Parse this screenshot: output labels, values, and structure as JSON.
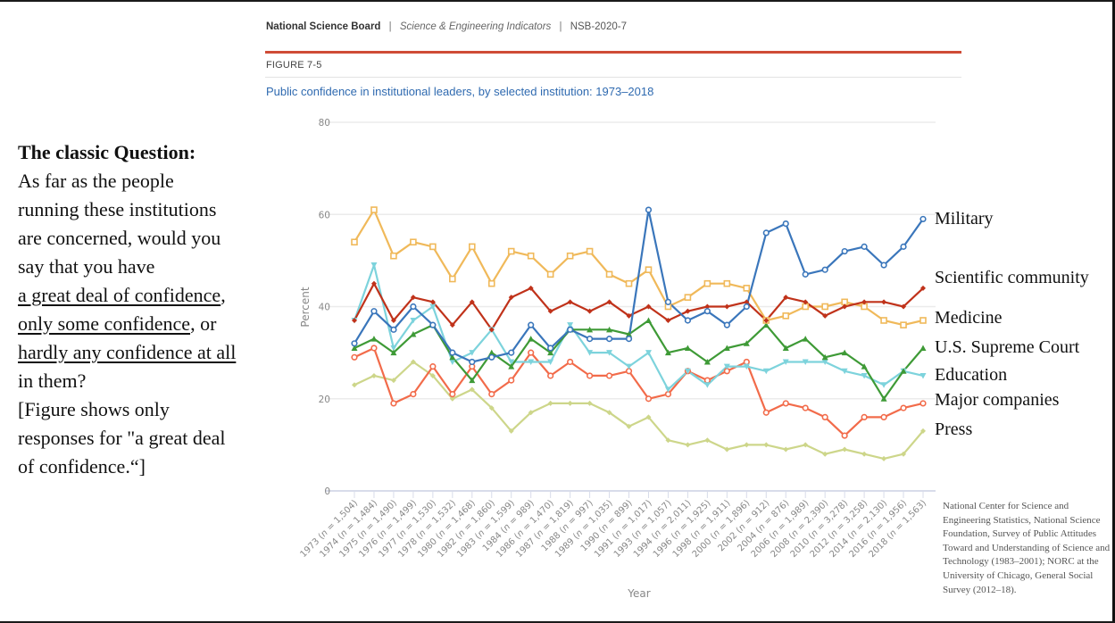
{
  "header": {
    "org": "National Science Board",
    "series": "Science & Engineering Indicators",
    "code": "NSB-2020-7",
    "separator": "|"
  },
  "figure": {
    "label": "FIGURE 7-5",
    "title": "Public confidence in institutional leaders, by selected institution: 1973–2018"
  },
  "question": {
    "title": "The classic Question:",
    "line1": "As far as the people",
    "line2": "running these institutions",
    "line3": "are concerned, would you",
    "line4": "say that you have",
    "opt1": "a great deal of confidence",
    "opt1_tail": ",",
    "opt2": "only some confidence",
    "opt2_tail": ", or",
    "opt3": "hardly any confidence at all",
    "line5": "in them?",
    "note1": "[Figure shows only",
    "note2": "responses for \"a great deal",
    "note3": "of confidence.“]"
  },
  "source": "National Center for Science and Engineering Statistics, National Science Foundation, Survey of Public Attitudes Toward and Understanding of Science and Technology (1983–2001); NORC at the University of Chicago, General Social Survey (2012–18).",
  "chart_data": {
    "type": "line",
    "title": "Public confidence in institutional leaders, by selected institution: 1973–2018",
    "xlabel": "Year",
    "ylabel": "Percent",
    "ylim": [
      0,
      80
    ],
    "yticks": [
      0,
      20,
      40,
      60,
      80
    ],
    "grid": true,
    "legend": "right-side direct labels",
    "categories": [
      "1973 (n = 1,504)",
      "1974 (n = 1,484)",
      "1975 (n = 1,490)",
      "1976 (n = 1,499)",
      "1977 (n = 1,530)",
      "1978 (n = 1,532)",
      "1980 (n = 1,468)",
      "1982 (n = 1,860)",
      "1983 (n = 1,599)",
      "1984 (n = 989)",
      "1986 (n = 1,470)",
      "1987 (n = 1,819)",
      "1988 (n = 997)",
      "1989 (n = 1,035)",
      "1990 (n = 899)",
      "1991 (n = 1,017)",
      "1993 (n = 1,057)",
      "1994 (n = 2,011)",
      "1996 (n = 1,925)",
      "1998 (n = 1,911)",
      "2000 (n = 1,896)",
      "2002 (n = 912)",
      "2004 (n = 876)",
      "2006 (n = 1,989)",
      "2008 (n = 2,390)",
      "2010 (n = 3,278)",
      "2012 (n = 3,258)",
      "2014 (n = 2,130)",
      "2016 (n = 1,956)",
      "2018 (n = 1,563)"
    ],
    "series": [
      {
        "name": "Press",
        "color": "#cdd68a",
        "marker": "diamond",
        "values": [
          23,
          25,
          24,
          28,
          25,
          20,
          22,
          18,
          13,
          17,
          19,
          19,
          19,
          17,
          14,
          16,
          11,
          10,
          11,
          9,
          10,
          10,
          9,
          10,
          8,
          9,
          8,
          7,
          8,
          13
        ]
      },
      {
        "name": "Major companies",
        "color": "#f26b4a",
        "marker": "circle",
        "values": [
          29,
          31,
          19,
          21,
          27,
          21,
          27,
          21,
          24,
          30,
          25,
          28,
          25,
          25,
          26,
          20,
          21,
          26,
          24,
          26,
          28,
          17,
          19,
          18,
          16,
          12,
          16,
          16,
          18,
          19
        ]
      },
      {
        "name": "Education",
        "color": "#7dd3dc",
        "marker": "triangle-down",
        "values": [
          37,
          49,
          31,
          37,
          40,
          28,
          30,
          35,
          28,
          28,
          28,
          36,
          30,
          30,
          27,
          30,
          22,
          26,
          23,
          27,
          27,
          26,
          28,
          28,
          28,
          26,
          25,
          23,
          26,
          25
        ]
      },
      {
        "name": "U.S. Supreme Court",
        "color": "#3e9a36",
        "marker": "triangle-up",
        "values": [
          31,
          33,
          30,
          34,
          36,
          29,
          24,
          30,
          27,
          33,
          30,
          35,
          35,
          35,
          34,
          37,
          30,
          31,
          28,
          31,
          32,
          36,
          31,
          33,
          29,
          30,
          27,
          20,
          26,
          31
        ]
      },
      {
        "name": "Medicine",
        "color": "#f0b95a",
        "marker": "square",
        "values": [
          54,
          61,
          51,
          54,
          53,
          46,
          53,
          45,
          52,
          51,
          47,
          51,
          52,
          47,
          45,
          48,
          40,
          42,
          45,
          45,
          44,
          37,
          38,
          40,
          40,
          41,
          40,
          37,
          36,
          37
        ]
      },
      {
        "name": "Scientific community",
        "color": "#c0321a",
        "marker": "diamond",
        "values": [
          37,
          45,
          37,
          42,
          41,
          36,
          41,
          35,
          42,
          44,
          39,
          41,
          39,
          41,
          38,
          40,
          37,
          39,
          40,
          40,
          41,
          37,
          42,
          41,
          38,
          40,
          41,
          41,
          40,
          44
        ]
      },
      {
        "name": "Military",
        "color": "#3a76bb",
        "marker": "circle",
        "values": [
          32,
          39,
          35,
          40,
          36,
          30,
          28,
          29,
          30,
          36,
          31,
          35,
          33,
          33,
          33,
          61,
          41,
          37,
          39,
          36,
          40,
          56,
          58,
          47,
          48,
          52,
          53,
          49,
          53,
          59
        ]
      }
    ],
    "side_labels": [
      "Military",
      "Scientific community",
      "Medicine",
      "U.S. Supreme Court",
      "Education",
      "Major companies",
      "Press"
    ]
  }
}
